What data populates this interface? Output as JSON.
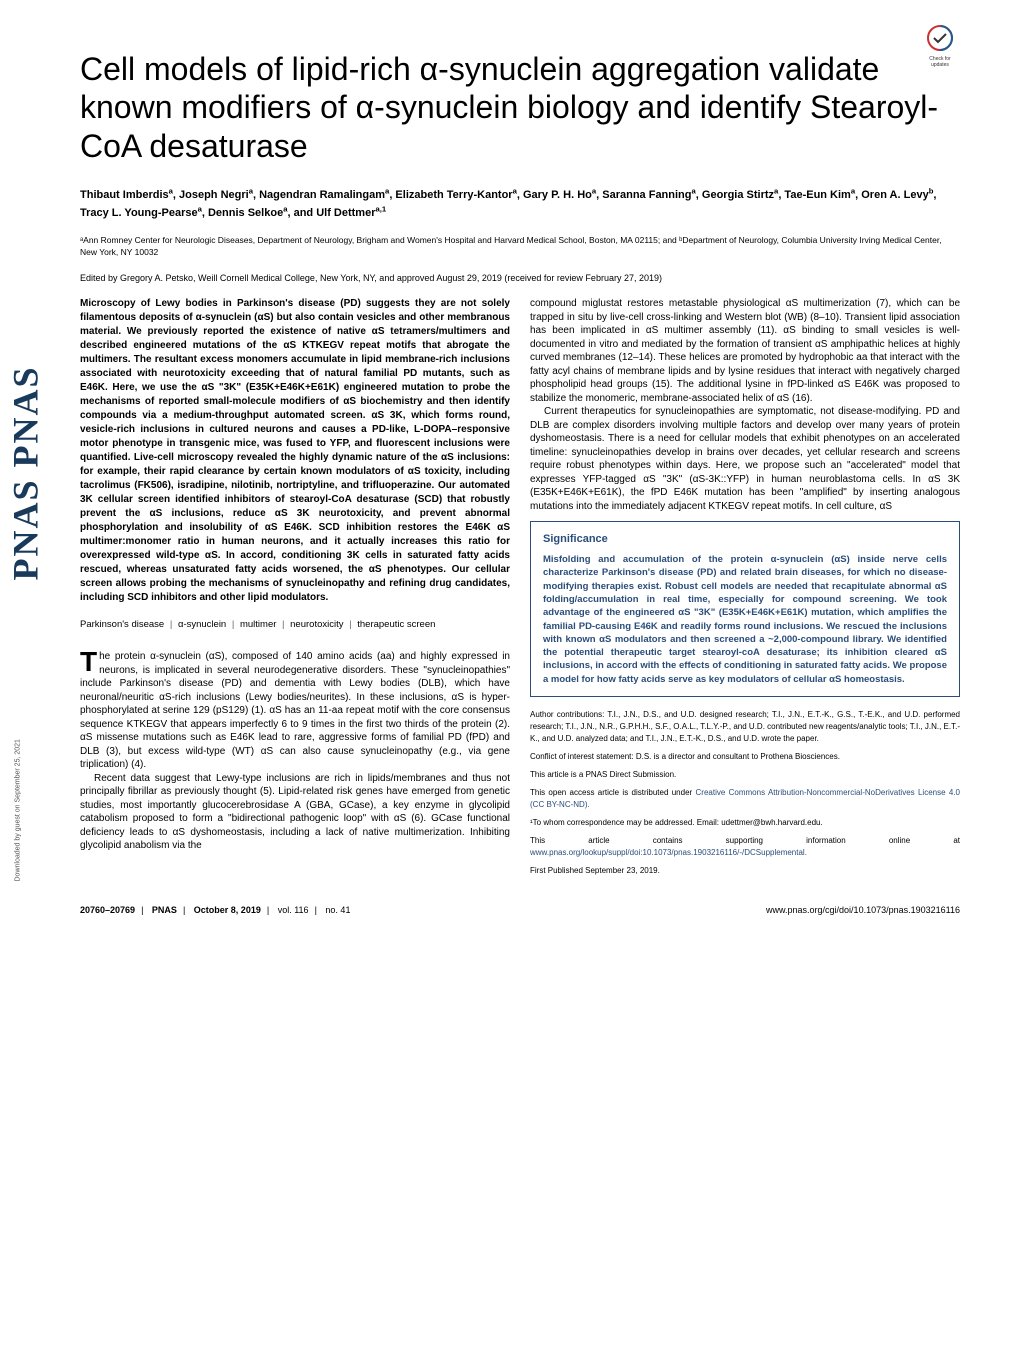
{
  "badge": {
    "label": "Check for updates"
  },
  "sidebar_text": "PNAS  PNAS",
  "download_note": "Downloaded by guest on September 25, 2021",
  "title": "Cell models of lipid-rich α-synuclein aggregation validate known modifiers of α-synuclein biology and identify Stearoyl-CoA desaturase",
  "authors_html": "Thibaut Imberdis<sup>a</sup>, Joseph Negri<sup>a</sup>, Nagendran Ramalingam<sup>a</sup>, Elizabeth Terry-Kantor<sup>a</sup>, Gary P. H. Ho<sup>a</sup>, Saranna Fanning<sup>a</sup>, Georgia Stirtz<sup>a</sup>, Tae-Eun Kim<sup>a</sup>, Oren A. Levy<sup>b</sup>, Tracy L. Young-Pearse<sup>a</sup>, Dennis Selkoe<sup>a</sup>, and Ulf Dettmer<sup>a,1</sup>",
  "affiliations": "ᵃAnn Romney Center for Neurologic Diseases, Department of Neurology, Brigham and Women's Hospital and Harvard Medical School, Boston, MA 02115; and ᵇDepartment of Neurology, Columbia University Irving Medical Center, New York, NY 10032",
  "edited": "Edited by Gregory A. Petsko, Weill Cornell Medical College, New York, NY, and approved August 29, 2019 (received for review February 27, 2019)",
  "abstract": "Microscopy of Lewy bodies in Parkinson's disease (PD) suggests they are not solely filamentous deposits of α-synuclein (αS) but also contain vesicles and other membranous material. We previously reported the existence of native αS tetramers/multimers and described engineered mutations of the αS KTKEGV repeat motifs that abrogate the multimers. The resultant excess monomers accumulate in lipid membrane-rich inclusions associated with neurotoxicity exceeding that of natural familial PD mutants, such as E46K. Here, we use the αS \"3K\" (E35K+E46K+E61K) engineered mutation to probe the mechanisms of reported small-molecule modifiers of αS biochemistry and then identify compounds via a medium-throughput automated screen. αS 3K, which forms round, vesicle-rich inclusions in cultured neurons and causes a PD-like, L-DOPA–responsive motor phenotype in transgenic mice, was fused to YFP, and fluorescent inclusions were quantified. Live-cell microscopy revealed the highly dynamic nature of the αS inclusions: for example, their rapid clearance by certain known modulators of αS toxicity, including tacrolimus (FK506), isradipine, nilotinib, nortriptyline, and trifluoperazine. Our automated 3K cellular screen identified inhibitors of stearoyl-CoA desaturase (SCD) that robustly prevent the αS inclusions, reduce αS 3K neurotoxicity, and prevent abnormal phosphorylation and insolubility of αS E46K. SCD inhibition restores the E46K αS multimer:monomer ratio in human neurons, and it actually increases this ratio for overexpressed wild-type αS. In accord, conditioning 3K cells in saturated fatty acids rescued, whereas unsaturated fatty acids worsened, the αS phenotypes. Our cellular screen allows probing the mechanisms of synucleinopathy and refining drug candidates, including SCD inhibitors and other lipid modulators.",
  "keywords": [
    "Parkinson's disease",
    "α-synuclein",
    "multimer",
    "neurotoxicity",
    "therapeutic screen"
  ],
  "body_p1": "he protein α-synuclein (αS), composed of 140 amino acids (aa) and highly expressed in neurons, is implicated in several neurodegenerative disorders. These \"synucleinopathies\" include Parkinson's disease (PD) and dementia with Lewy bodies (DLB), which have neuronal/neuritic αS-rich inclusions (Lewy bodies/neurites). In these inclusions, αS is hyper-phosphorylated at serine 129 (pS129) (1). αS has an 11-aa repeat motif with the core consensus sequence KTKEGV that appears imperfectly 6 to 9 times in the first two thirds of the protein (2). αS missense mutations such as E46K lead to rare, aggressive forms of familial PD (fPD) and DLB (3), but excess wild-type (WT) αS can also cause synucleinopathy (e.g., via gene triplication) (4).",
  "body_p2": "Recent data suggest that Lewy-type inclusions are rich in lipids/membranes and thus not principally fibrillar as previously thought (5). Lipid-related risk genes have emerged from genetic studies, most importantly glucocerebrosidase A (GBA, GCase), a key enzyme in glycolipid catabolism proposed to form a \"bidirectional pathogenic loop\" with αS (6). GCase functional deficiency leads to αS dyshomeostasis, including a lack of native multimerization. Inhibiting glycolipid anabolism via the",
  "body_p3": "compound miglustat restores metastable physiological αS multimerization (7), which can be trapped in situ by live-cell cross-linking and Western blot (WB) (8–10). Transient lipid association has been implicated in αS multimer assembly (11). αS binding to small vesicles is well-documented in vitro and mediated by the formation of transient αS amphipathic helices at highly curved membranes (12–14). These helices are promoted by hydrophobic aa that interact with the fatty acyl chains of membrane lipids and by lysine residues that interact with negatively charged phospholipid head groups (15). The additional lysine in fPD-linked αS E46K was proposed to stabilize the monomeric, membrane-associated helix of αS (16).",
  "body_p4": "Current therapeutics for synucleinopathies are symptomatic, not disease-modifying. PD and DLB are complex disorders involving multiple factors and develop over many years of protein dyshomeostasis. There is a need for cellular models that exhibit phenotypes on an accelerated timeline: synucleinopathies develop in brains over decades, yet cellular research and screens require robust phenotypes within days. Here, we propose such an \"accelerated\" model that expresses YFP-tagged αS \"3K\" (αS-3K::YFP) in human neuroblastoma cells. In αS 3K (E35K+E46K+E61K), the fPD E46K mutation has been \"amplified\" by inserting analogous mutations into the immediately adjacent KTKEGV repeat motifs. In cell culture, αS",
  "significance": {
    "title": "Significance",
    "body": "Misfolding and accumulation of the protein α-synuclein (αS) inside nerve cells characterize Parkinson's disease (PD) and related brain diseases, for which no disease-modifying therapies exist. Robust cell models are needed that recapitulate abnormal αS folding/accumulation in real time, especially for compound screening. We took advantage of the engineered αS \"3K\" (E35K+E46K+E61K) mutation, which amplifies the familial PD-causing E46K and readily forms round inclusions. We rescued the inclusions with known αS modulators and then screened a ~2,000-compound library. We identified the potential therapeutic target stearoyl-coA desaturase; its inhibition cleared αS inclusions, in accord with the effects of conditioning in saturated fatty acids. We propose a model for how fatty acids serve as key modulators of cellular αS homeostasis."
  },
  "footer_meta": {
    "contributions": "Author contributions: T.I., J.N., D.S., and U.D. designed research; T.I., J.N., E.T.-K., G.S., T.-E.K., and U.D. performed research; T.I., J.N., N.R., G.P.H.H., S.F., O.A.L., T.L.Y.-P., and U.D. contributed new reagents/analytic tools; T.I., J.N., E.T.-K., and U.D. analyzed data; and T.I., J.N., E.T.-K., D.S., and U.D. wrote the paper.",
    "conflict": "Conflict of interest statement: D.S. is a director and consultant to Prothena Biosciences.",
    "submission": "This article is a PNAS Direct Submission.",
    "license_prefix": "This open access article is distributed under ",
    "license_link": "Creative Commons Attribution-Noncommercial-NoDerivatives License 4.0 (CC BY-NC-ND).",
    "correspondence": "¹To whom correspondence may be addressed. Email: udettmer@bwh.harvard.edu.",
    "supporting_prefix": "This article contains supporting information online at ",
    "supporting_link": "www.pnas.org/lookup/suppl/doi:10.1073/pnas.1903216116/-/DCSupplemental.",
    "first_pub": "First Published September 23, 2019."
  },
  "page_footer": {
    "pages": "20760–20769",
    "journal": "PNAS",
    "date": "October 8, 2019",
    "vol": "vol. 116",
    "no": "no. 41",
    "doi": "www.pnas.org/cgi/doi/10.1073/pnas.1903216116"
  },
  "colors": {
    "pnas_blue": "#1a3a5c",
    "sig_border": "#2a4d7a",
    "badge_red": "#c83232",
    "badge_blue": "#1e5b8e"
  }
}
